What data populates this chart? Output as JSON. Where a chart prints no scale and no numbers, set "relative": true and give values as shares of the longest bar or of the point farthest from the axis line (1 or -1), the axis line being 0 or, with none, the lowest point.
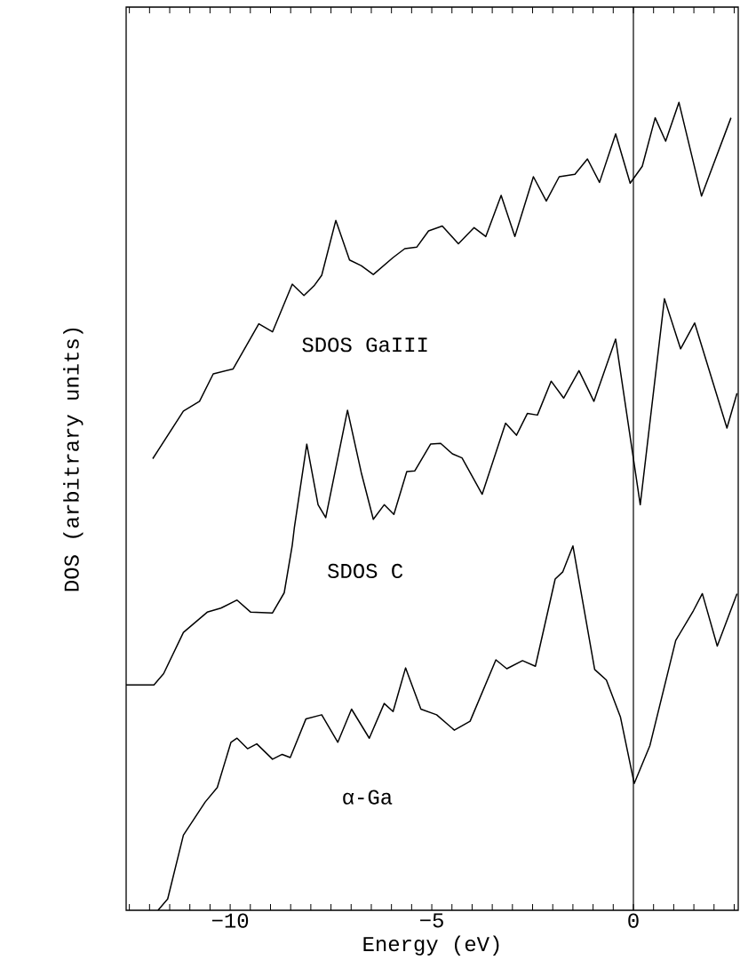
{
  "chart_data": {
    "type": "line",
    "relative": true,
    "xlabel": "Energy (eV)",
    "ylabel": "DOS (arbitrary units)",
    "xlim": [
      -12.58,
      2.6
    ],
    "xticks": [
      {
        "value": -12.5,
        "label": null
      },
      {
        "value": -12,
        "label": null
      },
      {
        "value": -11.5,
        "label": null
      },
      {
        "value": -11,
        "label": null
      },
      {
        "value": -10.5,
        "label": null
      },
      {
        "value": -10,
        "label": "−10"
      },
      {
        "value": -9.5,
        "label": null
      },
      {
        "value": -9,
        "label": null
      },
      {
        "value": -8.5,
        "label": null
      },
      {
        "value": -8,
        "label": null
      },
      {
        "value": -7.5,
        "label": null
      },
      {
        "value": -7,
        "label": null
      },
      {
        "value": -6.5,
        "label": null
      },
      {
        "value": -6,
        "label": null
      },
      {
        "value": -5.5,
        "label": null
      },
      {
        "value": -5,
        "label": "−5"
      },
      {
        "value": -4.5,
        "label": null
      },
      {
        "value": -4,
        "label": null
      },
      {
        "value": -3.5,
        "label": null
      },
      {
        "value": -3,
        "label": null
      },
      {
        "value": -2.5,
        "label": null
      },
      {
        "value": -2,
        "label": null
      },
      {
        "value": -1.5,
        "label": null
      },
      {
        "value": -1,
        "label": null
      },
      {
        "value": -0.5,
        "label": null
      },
      {
        "value": 0,
        "label": "0"
      },
      {
        "value": 0.5,
        "label": null
      },
      {
        "value": 1,
        "label": null
      },
      {
        "value": 1.5,
        "label": null
      },
      {
        "value": 2,
        "label": null
      },
      {
        "value": 2.5,
        "label": null
      }
    ],
    "ref_lines": [
      {
        "axis": "x",
        "value": 0,
        "color": "#000000"
      }
    ],
    "series": [
      {
        "name": "SDOS GaIII",
        "color": "#000000",
        "x": [
          -11.92,
          -11.16,
          -10.76,
          -10.42,
          -9.93,
          -9.29,
          -8.95,
          -8.46,
          -8.17,
          -7.92,
          -7.73,
          -7.38,
          -7.04,
          -6.75,
          -6.45,
          -5.96,
          -5.67,
          -5.37,
          -5.08,
          -4.74,
          -4.34,
          -3.95,
          -3.66,
          -3.28,
          -2.94,
          -2.48,
          -2.16,
          -1.84,
          -1.45,
          -1.14,
          -0.84,
          -0.44,
          -0.08,
          0.22,
          0.54,
          0.8,
          1.13,
          1.69,
          2.42
        ],
        "values": [
          0.559,
          0.618,
          0.63,
          0.664,
          0.67,
          0.726,
          0.716,
          0.775,
          0.761,
          0.773,
          0.786,
          0.854,
          0.805,
          0.798,
          0.787,
          0.808,
          0.819,
          0.821,
          0.841,
          0.847,
          0.825,
          0.845,
          0.834,
          0.885,
          0.834,
          0.908,
          0.878,
          0.908,
          0.911,
          0.93,
          0.901,
          0.961,
          0.9,
          0.921,
          0.981,
          0.952,
          1.0,
          0.884,
          0.981
        ]
      },
      {
        "name": "SDOS C",
        "color": "#000000",
        "x": [
          -12.58,
          -11.89,
          -11.65,
          -11.16,
          -10.57,
          -10.23,
          -9.83,
          -9.49,
          -8.95,
          -8.66,
          -8.46,
          -8.41,
          -8.1,
          -7.82,
          -7.63,
          -7.09,
          -6.75,
          -6.45,
          -6.18,
          -5.94,
          -5.62,
          -5.42,
          -5.03,
          -4.78,
          -4.49,
          -4.25,
          -3.75,
          -3.17,
          -2.9,
          -2.63,
          -2.38,
          -2.04,
          -1.73,
          -1.35,
          -0.98,
          -0.44,
          0.17,
          0.77,
          1.17,
          1.52,
          2.32,
          2.57
        ],
        "values": [
          0.279,
          0.279,
          0.293,
          0.344,
          0.369,
          0.374,
          0.384,
          0.369,
          0.368,
          0.393,
          0.452,
          0.473,
          0.577,
          0.502,
          0.486,
          0.619,
          0.542,
          0.484,
          0.502,
          0.49,
          0.543,
          0.544,
          0.577,
          0.578,
          0.565,
          0.56,
          0.515,
          0.603,
          0.588,
          0.615,
          0.613,
          0.655,
          0.634,
          0.668,
          0.63,
          0.707,
          0.502,
          0.757,
          0.695,
          0.727,
          0.597,
          0.64
        ]
      },
      {
        "name": "α-Ga",
        "color": "#000000",
        "x": [
          -11.79,
          -11.55,
          -11.16,
          -10.62,
          -10.32,
          -9.98,
          -9.83,
          -9.57,
          -9.34,
          -8.95,
          -8.71,
          -8.51,
          -8.12,
          -7.73,
          -7.33,
          -6.99,
          -6.55,
          -6.18,
          -5.96,
          -5.65,
          -5.27,
          -4.88,
          -4.44,
          -4.05,
          -3.41,
          -3.14,
          -2.75,
          -2.43,
          -1.94,
          -1.75,
          -1.5,
          -0.96,
          -0.67,
          -0.32,
          0.02,
          0.41,
          1.05,
          1.49,
          1.71,
          2.08,
          2.57
        ],
        "values": [
          0.0,
          0.014,
          0.093,
          0.134,
          0.152,
          0.208,
          0.213,
          0.2,
          0.206,
          0.187,
          0.193,
          0.189,
          0.237,
          0.242,
          0.208,
          0.249,
          0.213,
          0.256,
          0.246,
          0.3,
          0.249,
          0.242,
          0.223,
          0.234,
          0.31,
          0.299,
          0.309,
          0.302,
          0.41,
          0.419,
          0.451,
          0.298,
          0.285,
          0.239,
          0.157,
          0.204,
          0.334,
          0.371,
          0.392,
          0.327,
          0.392
        ]
      }
    ]
  }
}
